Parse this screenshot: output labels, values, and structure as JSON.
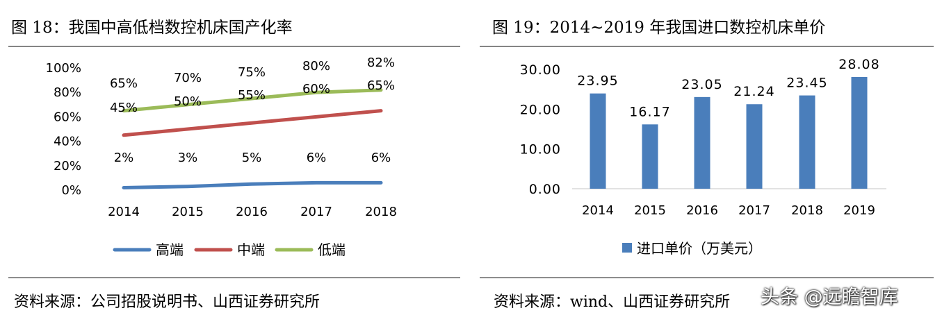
{
  "left": {
    "title": "图 18：我国中高低档数控机床国产化率",
    "source": "资料来源：公司招股说明书、山西证券研究所",
    "chart_data": {
      "type": "line",
      "x": [
        "2014",
        "2015",
        "2016",
        "2017",
        "2018"
      ],
      "yticks": [
        "0%",
        "20%",
        "40%",
        "60%",
        "80%",
        "100%"
      ],
      "ylim": [
        0,
        100
      ],
      "grid": false,
      "legend_position": "bottom",
      "series": [
        {
          "name": "高端",
          "values": [
            2,
            3,
            5,
            6,
            6
          ],
          "labels": [
            "2%",
            "3%",
            "5%",
            "6%",
            "6%"
          ],
          "color": "#4a7ebb"
        },
        {
          "name": "中端",
          "values": [
            45,
            50,
            55,
            60,
            65
          ],
          "labels": [
            "45%",
            "50%",
            "55%",
            "60%",
            "65%"
          ],
          "color": "#c0504d"
        },
        {
          "name": "低端",
          "values": [
            65,
            70,
            75,
            80,
            82
          ],
          "labels": [
            "65%",
            "70%",
            "75%",
            "80%",
            "82%"
          ],
          "color": "#9bbb59"
        }
      ]
    }
  },
  "right": {
    "title": "图 19：2014~2019 年我国进口数控机床单价",
    "source": "资料来源：wind、山西证券研究所",
    "chart_data": {
      "type": "bar",
      "categories": [
        "2014",
        "2015",
        "2016",
        "2017",
        "2018",
        "2019"
      ],
      "series": [
        {
          "name": "进口单价（万美元）",
          "values": [
            23.95,
            16.17,
            23.05,
            21.24,
            23.45,
            28.08
          ],
          "labels": [
            "23.95",
            "16.17",
            "23.05",
            "21.24",
            "23.45",
            "28.08"
          ],
          "color": "#4a7ebb"
        }
      ],
      "yticks": [
        "0.00",
        "10.00",
        "20.00",
        "30.00"
      ],
      "ylim": [
        0,
        30
      ],
      "grid": false,
      "legend_position": "bottom"
    }
  },
  "watermark": "头条 @远瞻智库"
}
